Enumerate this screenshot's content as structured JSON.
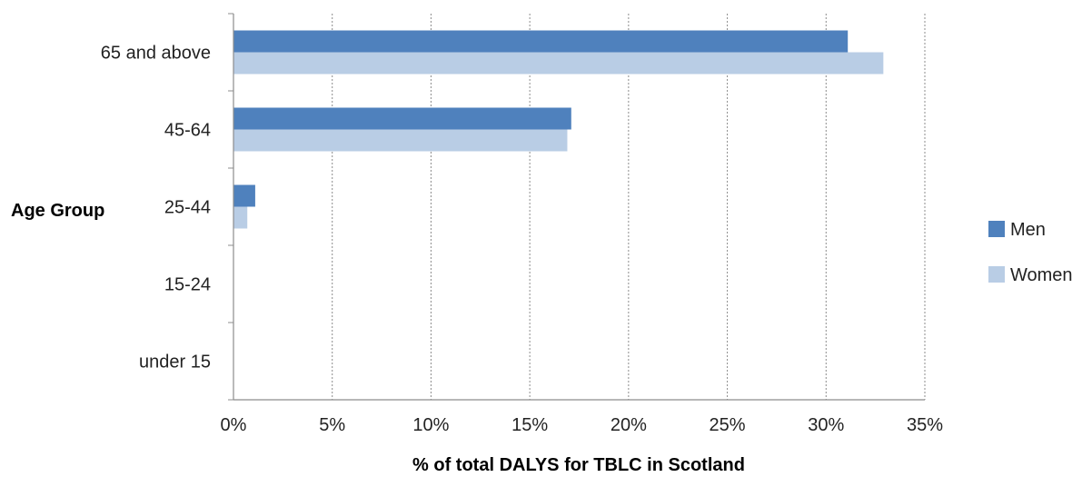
{
  "chart_data": {
    "type": "bar",
    "orientation": "horizontal",
    "categories": [
      "65 and above",
      "45-64",
      "25-44",
      "15-24",
      "under 15"
    ],
    "series": [
      {
        "name": "Men",
        "values": [
          31.1,
          17.1,
          1.1,
          0,
          0
        ],
        "color": "#4f81bd"
      },
      {
        "name": "Women",
        "values": [
          32.9,
          16.9,
          0.7,
          0,
          0
        ],
        "color": "#b9cde5"
      }
    ],
    "x_ticks": [
      "0%",
      "5%",
      "10%",
      "15%",
      "20%",
      "25%",
      "30%",
      "35%"
    ],
    "xlim": [
      0,
      35
    ],
    "xlabel": "% of total DALYS for TBLC in Scotland",
    "ylabel": "Age Group",
    "grid": "vertical dotted",
    "legend_position": "right"
  }
}
